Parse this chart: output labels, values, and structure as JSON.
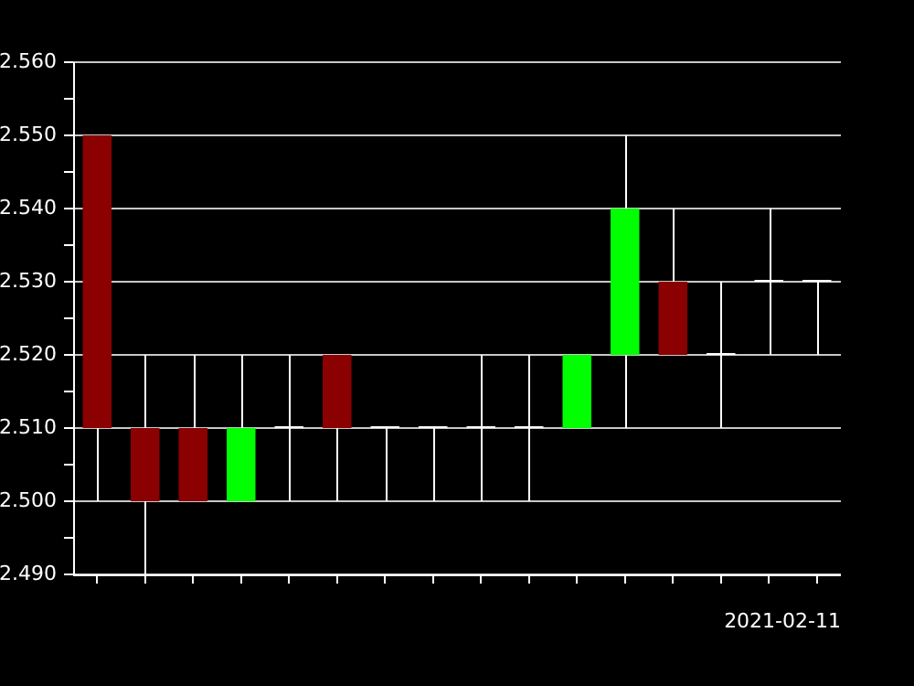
{
  "chart_data": {
    "type": "candlestick",
    "categories": [
      null,
      null,
      null,
      null,
      null,
      null,
      null,
      null,
      null,
      null,
      null,
      null,
      null,
      null,
      null,
      null
    ],
    "ohlc": [
      [
        2.55,
        2.55,
        2.5,
        2.51
      ],
      [
        2.51,
        2.52,
        2.49,
        2.5
      ],
      [
        2.51,
        2.52,
        2.5,
        2.5
      ],
      [
        2.5,
        2.52,
        2.5,
        2.51
      ],
      [
        2.51,
        2.52,
        2.5,
        2.51
      ],
      [
        2.52,
        2.52,
        2.5,
        2.51
      ],
      [
        2.51,
        2.51,
        2.5,
        2.51
      ],
      [
        2.51,
        2.51,
        2.5,
        2.51
      ],
      [
        2.51,
        2.52,
        2.5,
        2.51
      ],
      [
        2.51,
        2.52,
        2.5,
        2.51
      ],
      [
        2.51,
        2.52,
        2.51,
        2.52
      ],
      [
        2.52,
        2.55,
        2.51,
        2.54
      ],
      [
        2.53,
        2.54,
        2.52,
        2.52
      ],
      [
        2.52,
        2.53,
        2.51,
        2.52
      ],
      [
        2.53,
        2.54,
        2.52,
        2.53
      ],
      [
        2.53,
        2.53,
        2.52,
        2.53
      ]
    ],
    "colors": [
      "#8b0000",
      "#8b0000",
      "#8b0000",
      "#00ff00",
      "#ffffff",
      "#8b0000",
      "#ffffff",
      "#ffffff",
      "#ffffff",
      "#ffffff",
      "#00ff00",
      "#00ff00",
      "#8b0000",
      "#ffffff",
      "#ffffff",
      "#ffffff"
    ],
    "ylim": [
      2.49,
      2.56
    ],
    "yticks": [
      {
        "value": 2.49,
        "label": "2.490"
      },
      {
        "value": 2.495,
        "label": null
      },
      {
        "value": 2.5,
        "label": "2.500"
      },
      {
        "value": 2.505,
        "label": null
      },
      {
        "value": 2.51,
        "label": "2.510"
      },
      {
        "value": 2.515,
        "label": null
      },
      {
        "value": 2.52,
        "label": "2.520"
      },
      {
        "value": 2.525,
        "label": null
      },
      {
        "value": 2.53,
        "label": "2.530"
      },
      {
        "value": 2.535,
        "label": null
      },
      {
        "value": 2.54,
        "label": "2.540"
      },
      {
        "value": 2.545,
        "label": null
      },
      {
        "value": 2.55,
        "label": "2.550"
      },
      {
        "value": 2.555,
        "label": null
      },
      {
        "value": 2.56,
        "label": "2.560"
      }
    ],
    "grid": "y",
    "legend": false,
    "annotations": [
      "2021-02-11"
    ]
  }
}
